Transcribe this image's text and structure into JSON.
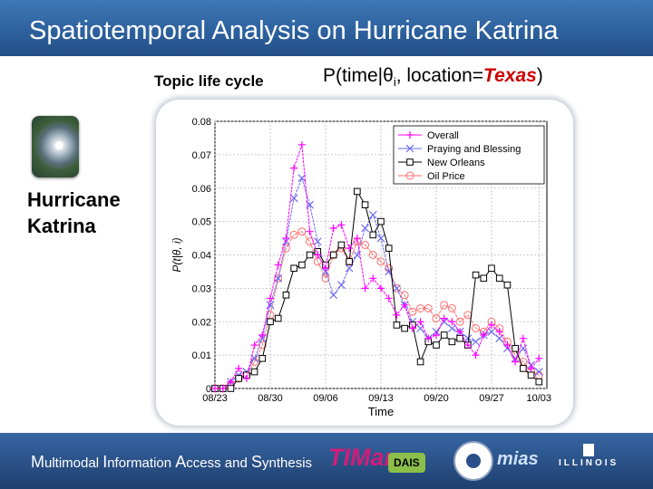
{
  "header": {
    "title": "Spatiotemporal Analysis on Hurricane Katrina"
  },
  "topic_label": "Topic life cycle",
  "formula": {
    "prefix": "P(time|θ",
    "sub": "i",
    "mid": ", location=",
    "highlight": "Texas",
    "suffix": ")"
  },
  "sidebar": {
    "image_icon": "hurricane-satellite-image",
    "label_line1": "Hurricane",
    "label_line2": "Katrina"
  },
  "footer": {
    "lab_name": [
      {
        "cap": "M",
        "rest": "ultimodal "
      },
      {
        "cap": "I",
        "rest": "nformation "
      },
      {
        "cap": "A",
        "rest": "ccess and "
      },
      {
        "cap": "S",
        "rest": "ynthesis"
      }
    ],
    "logos": {
      "timan": "TIMan",
      "dais": "DAIS",
      "mias": "mias",
      "illinois": "ILLINOIS"
    }
  },
  "colors": {
    "overall": "#ff00ff",
    "praying": "#6a6af0",
    "new_orleans": "#000000",
    "oil": "#ff6b6b"
  },
  "chart_data": {
    "type": "line",
    "xlabel": "Time",
    "ylabel": "P(t|θ, i)",
    "xlim": [
      "08/23",
      "10/04"
    ],
    "ylim": [
      0,
      0.08
    ],
    "x_ticks": [
      "08/23",
      "08/30",
      "09/06",
      "09/13",
      "09/20",
      "09/27",
      "10/03"
    ],
    "y_ticks": [
      "0",
      "0.01",
      "0.02",
      "0.03",
      "0.04",
      "0.05",
      "0.06",
      "0.07",
      "0.08"
    ],
    "grid": true,
    "legend_position": "top-right",
    "series": [
      {
        "name": "Overall",
        "marker": "plus",
        "x": [
          "08/23",
          "08/24",
          "08/25",
          "08/26",
          "08/27",
          "08/28",
          "08/29",
          "08/30",
          "08/31",
          "09/01",
          "09/02",
          "09/03",
          "09/04",
          "09/05",
          "09/06",
          "09/07",
          "09/08",
          "09/09",
          "09/10",
          "09/11",
          "09/12",
          "09/13",
          "09/14",
          "09/15",
          "09/16",
          "09/17",
          "09/18",
          "09/19",
          "09/20",
          "09/21",
          "09/22",
          "09/23",
          "09/24",
          "09/25",
          "09/26",
          "09/27",
          "09/28",
          "09/29",
          "09/30",
          "10/01",
          "10/02",
          "10/03"
        ],
        "y": [
          0.0,
          0.0,
          0.002,
          0.006,
          0.003,
          0.013,
          0.016,
          0.027,
          0.037,
          0.045,
          0.066,
          0.073,
          0.047,
          0.04,
          0.036,
          0.048,
          0.049,
          0.042,
          0.045,
          0.03,
          0.033,
          0.03,
          0.027,
          0.022,
          0.025,
          0.018,
          0.02,
          0.015,
          0.016,
          0.021,
          0.02,
          0.017,
          0.013,
          0.01,
          0.016,
          0.019,
          0.017,
          0.013,
          0.008,
          0.015,
          0.006,
          0.009
        ]
      },
      {
        "name": "Praying and Blessing",
        "marker": "x",
        "x": [
          "08/23",
          "08/24",
          "08/25",
          "08/26",
          "08/27",
          "08/28",
          "08/29",
          "08/30",
          "08/31",
          "09/01",
          "09/02",
          "09/03",
          "09/04",
          "09/05",
          "09/06",
          "09/07",
          "09/08",
          "09/09",
          "09/10",
          "09/11",
          "09/12",
          "09/13",
          "09/14",
          "09/15",
          "09/16",
          "09/17",
          "09/18",
          "09/19",
          "09/20",
          "09/21",
          "09/22",
          "09/23",
          "09/24",
          "09/25",
          "09/26",
          "09/27",
          "09/28",
          "09/29",
          "09/30",
          "10/01",
          "10/02",
          "10/03"
        ],
        "y": [
          0.0,
          0.0,
          0.002,
          0.004,
          0.005,
          0.009,
          0.015,
          0.025,
          0.033,
          0.044,
          0.057,
          0.063,
          0.055,
          0.044,
          0.035,
          0.028,
          0.031,
          0.036,
          0.04,
          0.048,
          0.052,
          0.045,
          0.035,
          0.03,
          0.025,
          0.02,
          0.018,
          0.015,
          0.017,
          0.02,
          0.018,
          0.017,
          0.015,
          0.014,
          0.016,
          0.017,
          0.015,
          0.012,
          0.009,
          0.012,
          0.007,
          0.005
        ]
      },
      {
        "name": "New Orleans",
        "marker": "square",
        "x": [
          "08/23",
          "08/24",
          "08/25",
          "08/26",
          "08/27",
          "08/28",
          "08/29",
          "08/30",
          "08/31",
          "09/01",
          "09/02",
          "09/03",
          "09/04",
          "09/05",
          "09/06",
          "09/07",
          "09/08",
          "09/09",
          "09/10",
          "09/11",
          "09/12",
          "09/13",
          "09/14",
          "09/15",
          "09/16",
          "09/17",
          "09/18",
          "09/19",
          "09/20",
          "09/21",
          "09/22",
          "09/23",
          "09/24",
          "09/25",
          "09/26",
          "09/27",
          "09/28",
          "09/29",
          "09/30",
          "10/01",
          "10/02",
          "10/03"
        ],
        "y": [
          0.0,
          0.0,
          0.0,
          0.003,
          0.004,
          0.005,
          0.009,
          0.02,
          0.021,
          0.028,
          0.036,
          0.037,
          0.04,
          0.041,
          0.037,
          0.04,
          0.043,
          0.038,
          0.059,
          0.055,
          0.046,
          0.05,
          0.042,
          0.019,
          0.018,
          0.019,
          0.008,
          0.014,
          0.013,
          0.016,
          0.014,
          0.015,
          0.013,
          0.034,
          0.033,
          0.036,
          0.033,
          0.031,
          0.012,
          0.006,
          0.004,
          0.002
        ]
      },
      {
        "name": "Oil Price",
        "marker": "circle",
        "x": [
          "08/23",
          "08/24",
          "08/25",
          "08/26",
          "08/27",
          "08/28",
          "08/29",
          "08/30",
          "08/31",
          "09/01",
          "09/02",
          "09/03",
          "09/04",
          "09/05",
          "09/06",
          "09/07",
          "09/08",
          "09/09",
          "09/10",
          "09/11",
          "09/12",
          "09/13",
          "09/14",
          "09/15",
          "09/16",
          "09/17",
          "09/18",
          "09/19",
          "09/20",
          "09/21",
          "09/22",
          "09/23",
          "09/24",
          "09/25",
          "09/26",
          "09/27",
          "09/28",
          "09/29",
          "09/30",
          "10/01",
          "10/02",
          "10/03"
        ],
        "y": [
          0.0,
          0.0,
          0.001,
          0.003,
          0.004,
          0.008,
          0.013,
          0.022,
          0.033,
          0.042,
          0.046,
          0.047,
          0.044,
          0.038,
          0.033,
          0.04,
          0.042,
          0.038,
          0.044,
          0.043,
          0.04,
          0.038,
          0.036,
          0.03,
          0.028,
          0.023,
          0.024,
          0.024,
          0.021,
          0.025,
          0.024,
          0.02,
          0.022,
          0.018,
          0.017,
          0.02,
          0.018,
          0.014,
          0.01,
          0.008,
          0.005,
          0.004
        ]
      }
    ]
  }
}
